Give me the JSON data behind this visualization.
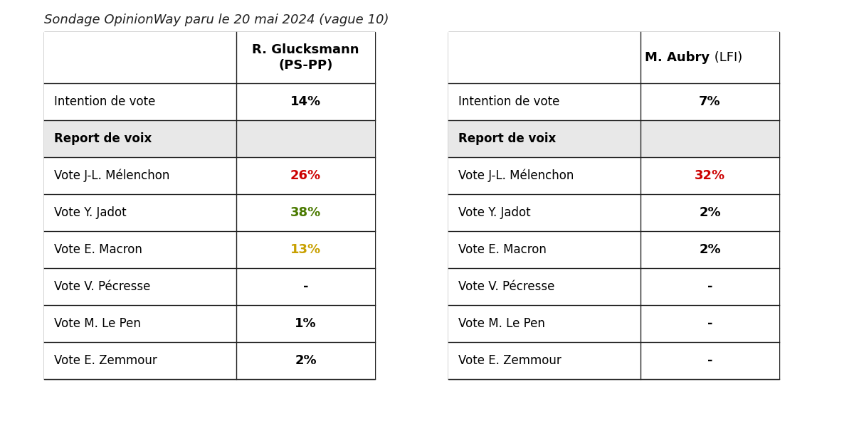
{
  "title": "Sondage OpinionWay paru le 20 mai 2024 (vague 10)",
  "title_fontsize": 13,
  "table1_header_line1": "R. Glucksmann",
  "table1_header_line2": "(PS-PP)",
  "table2_header_bold": "M. Aubry",
  "table2_header_normal": " (LFI)",
  "table1_rows": [
    [
      "Intention de vote",
      "14%"
    ],
    [
      "Report de voix",
      ""
    ],
    [
      "Vote J-L. Mélenchon",
      "26%"
    ],
    [
      "Vote Y. Jadot",
      "38%"
    ],
    [
      "Vote E. Macron",
      "13%"
    ],
    [
      "Vote V. Pécresse",
      "-"
    ],
    [
      "Vote M. Le Pen",
      "1%"
    ],
    [
      "Vote E. Zemmour",
      "2%"
    ]
  ],
  "table1_value_colors": [
    "#000000",
    "",
    "#cc0000",
    "#4a7a00",
    "#c8a000",
    "#000000",
    "#000000",
    "#000000"
  ],
  "table2_rows": [
    [
      "Intention de vote",
      "7%"
    ],
    [
      "Report de voix",
      ""
    ],
    [
      "Vote J-L. Mélenchon",
      "32%"
    ],
    [
      "Vote Y. Jadot",
      "2%"
    ],
    [
      "Vote E. Macron",
      "2%"
    ],
    [
      "Vote V. Pécresse",
      "-"
    ],
    [
      "Vote M. Le Pen",
      "-"
    ],
    [
      "Vote E. Zemmour",
      "-"
    ]
  ],
  "table2_value_colors": [
    "#000000",
    "",
    "#cc0000",
    "#000000",
    "#000000",
    "#000000",
    "#000000",
    "#000000"
  ],
  "background_color": "#ffffff",
  "report_bg": "#e8e8e8",
  "border_color": "#222222"
}
